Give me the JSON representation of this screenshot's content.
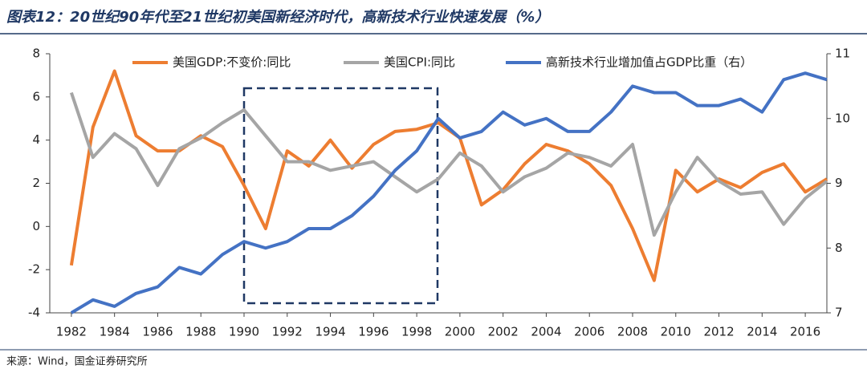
{
  "chart_data": {
    "type": "line",
    "title": "图表12：20世纪90年代至21世纪初美国新经济时代，高新技术行业快速发展（%）",
    "source": "来源：Wind，国金证券研究所",
    "x": [
      1982,
      1983,
      1984,
      1985,
      1986,
      1987,
      1988,
      1989,
      1990,
      1991,
      1992,
      1993,
      1994,
      1995,
      1996,
      1997,
      1998,
      1999,
      2000,
      2001,
      2002,
      2003,
      2004,
      2005,
      2006,
      2007,
      2008,
      2009,
      2010,
      2011,
      2012,
      2013,
      2014,
      2015,
      2016,
      2017
    ],
    "xlim": [
      1981,
      2017
    ],
    "xticks": [
      1982,
      1984,
      1986,
      1988,
      1990,
      1992,
      1994,
      1996,
      1998,
      2000,
      2002,
      2004,
      2006,
      2008,
      2010,
      2012,
      2014,
      2016
    ],
    "ylim": [
      -4,
      8
    ],
    "yticks": [
      -4,
      -2,
      0,
      2,
      4,
      6,
      8
    ],
    "y2lim": [
      7,
      11
    ],
    "y2ticks": [
      7,
      8,
      9,
      10,
      11
    ],
    "legend": "top",
    "series": [
      {
        "name": "美国GDP:不变价:同比",
        "color": "#ed7d31",
        "values": [
          -1.8,
          4.6,
          7.2,
          4.2,
          3.5,
          3.5,
          4.2,
          3.7,
          1.9,
          -0.1,
          3.5,
          2.8,
          4.0,
          2.7,
          3.8,
          4.4,
          4.5,
          4.8,
          4.1,
          1.0,
          1.7,
          2.9,
          3.8,
          3.5,
          2.9,
          1.9,
          -0.1,
          -2.5,
          2.6,
          1.6,
          2.2,
          1.8,
          2.5,
          2.9,
          1.6,
          2.2
        ]
      },
      {
        "name": "美国CPI:同比",
        "color": "#a5a5a5",
        "values": [
          6.2,
          3.2,
          4.3,
          3.6,
          1.9,
          3.6,
          4.1,
          4.8,
          5.4,
          4.2,
          3.0,
          3.0,
          2.6,
          2.8,
          3.0,
          2.3,
          1.6,
          2.2,
          3.4,
          2.8,
          1.6,
          2.3,
          2.7,
          3.4,
          3.2,
          2.8,
          3.8,
          -0.4,
          1.6,
          3.2,
          2.1,
          1.5,
          1.6,
          0.1,
          1.3,
          2.1
        ]
      },
      {
        "name": "高新技术行业增加值占GDP比重（右）",
        "color": "#4472c4",
        "axis": "y2",
        "values": [
          7.0,
          7.2,
          7.1,
          7.3,
          7.4,
          7.7,
          7.6,
          7.9,
          8.1,
          8.0,
          8.1,
          8.3,
          8.3,
          8.5,
          8.8,
          9.2,
          9.5,
          10.0,
          9.7,
          9.8,
          10.1,
          9.9,
          10.0,
          9.8,
          9.8,
          10.1,
          10.5,
          10.4,
          10.4,
          10.2,
          10.2,
          10.3,
          10.1,
          10.6,
          10.7,
          10.6
        ]
      }
    ]
  }
}
